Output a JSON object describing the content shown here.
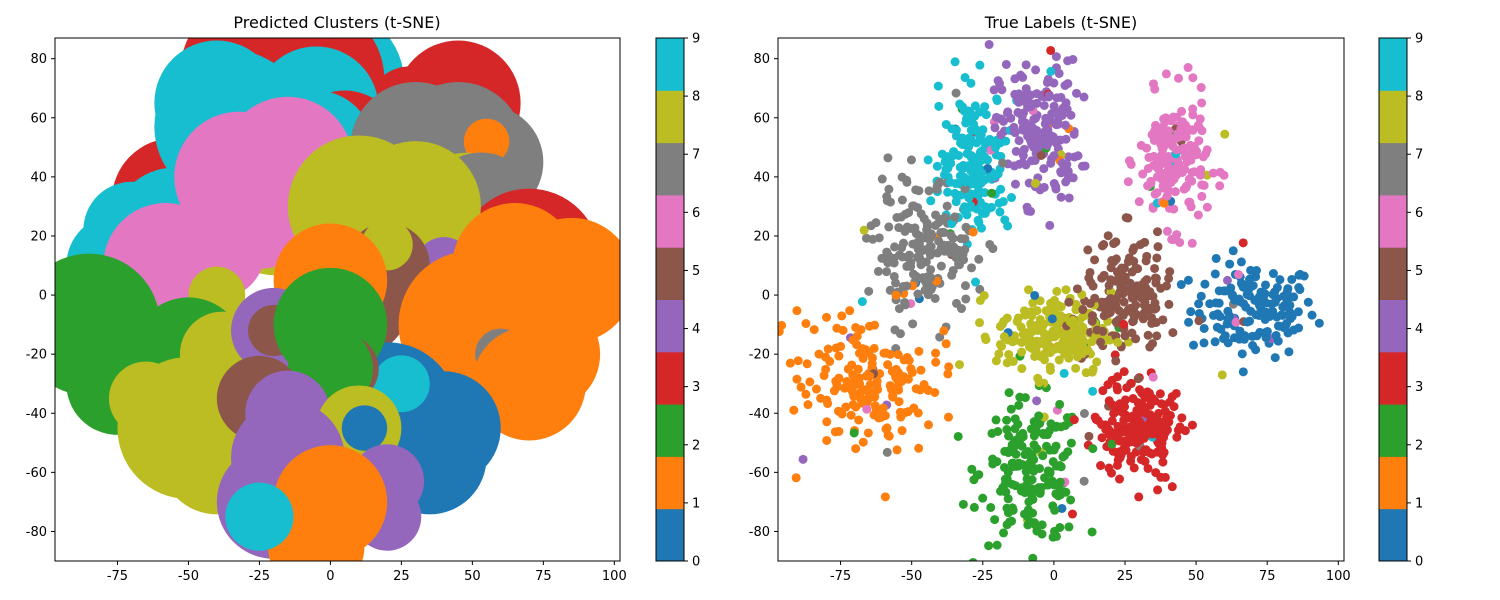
{
  "palette": [
    "#1f77b4",
    "#ff7f0e",
    "#2ca02c",
    "#d62728",
    "#9467bd",
    "#8c564b",
    "#e377c2",
    "#7f7f7f",
    "#bcbd22",
    "#17becf"
  ],
  "chart_data": [
    {
      "type": "scatter",
      "title": "Predicted Clusters (t-SNE)",
      "xlabel": "",
      "ylabel": "",
      "xlim": [
        -97,
        102
      ],
      "ylim": [
        -90,
        87
      ],
      "xticks": [
        -75,
        -50,
        -25,
        0,
        25,
        50,
        75,
        100
      ],
      "yticks": [
        -80,
        -60,
        -40,
        -20,
        0,
        20,
        40,
        60,
        80
      ],
      "grid": false,
      "colorbar": {
        "min": 0,
        "max": 9,
        "ticks": [
          0,
          1,
          2,
          3,
          4,
          5,
          6,
          7,
          8,
          9
        ],
        "colormap": "tab10"
      },
      "points": [
        {
          "x": 0,
          "y": 72,
          "r": 26,
          "c": 9
        },
        {
          "x": -8,
          "y": 73,
          "r": 27,
          "c": 3
        },
        {
          "x": -25,
          "y": 75,
          "r": 28,
          "c": 3
        },
        {
          "x": -40,
          "y": 65,
          "r": 22,
          "c": 9
        },
        {
          "x": 45,
          "y": 65,
          "r": 22,
          "c": 3
        },
        {
          "x": 28,
          "y": 63,
          "r": 15,
          "c": 3
        },
        {
          "x": -55,
          "y": 32,
          "r": 22,
          "c": 3
        },
        {
          "x": -35,
          "y": 57,
          "r": 27,
          "c": 9
        },
        {
          "x": -25,
          "y": 63,
          "r": 12,
          "c": 9
        },
        {
          "x": -5,
          "y": 63,
          "r": 22,
          "c": 9
        },
        {
          "x": 5,
          "y": 50,
          "r": 20,
          "c": 3
        },
        {
          "x": -5,
          "y": 50,
          "r": 20,
          "c": 9
        },
        {
          "x": 45,
          "y": 50,
          "r": 23,
          "c": 7
        },
        {
          "x": 30,
          "y": 50,
          "r": 23,
          "c": 7
        },
        {
          "x": 55,
          "y": 45,
          "r": 20,
          "c": 7
        },
        {
          "x": 55,
          "y": 52,
          "r": 8,
          "c": 1
        },
        {
          "x": 48,
          "y": 28,
          "r": 21,
          "c": 8
        },
        {
          "x": 53,
          "y": 30,
          "r": 19,
          "c": 7
        },
        {
          "x": 70,
          "y": 12,
          "r": 25,
          "c": 3
        },
        {
          "x": -70,
          "y": 22,
          "r": 17,
          "c": 9
        },
        {
          "x": -55,
          "y": 22,
          "r": 22,
          "c": 9
        },
        {
          "x": -75,
          "y": 10,
          "r": 18,
          "c": 9
        },
        {
          "x": -32,
          "y": 40,
          "r": 23,
          "c": 6
        },
        {
          "x": -15,
          "y": 45,
          "r": 23,
          "c": 6
        },
        {
          "x": -5,
          "y": 40,
          "r": 17,
          "c": 6
        },
        {
          "x": -20,
          "y": 25,
          "r": 19,
          "c": 8
        },
        {
          "x": -25,
          "y": 30,
          "r": 22,
          "c": 6
        },
        {
          "x": -8,
          "y": 27,
          "r": 17,
          "c": 6
        },
        {
          "x": 10,
          "y": 30,
          "r": 25,
          "c": 8
        },
        {
          "x": 30,
          "y": 30,
          "r": 23,
          "c": 8
        },
        {
          "x": -58,
          "y": 10,
          "r": 22,
          "c": 6
        },
        {
          "x": -50,
          "y": 10,
          "r": 19,
          "c": 6
        },
        {
          "x": -45,
          "y": 5,
          "r": 14,
          "c": 6
        },
        {
          "x": -40,
          "y": 15,
          "r": 17,
          "c": 6
        },
        {
          "x": -40,
          "y": 0,
          "r": 10,
          "c": 8
        },
        {
          "x": 40,
          "y": 10,
          "r": 10,
          "c": 4
        },
        {
          "x": 20,
          "y": 10,
          "r": 15,
          "c": 5
        },
        {
          "x": 20,
          "y": 17,
          "r": 9,
          "c": 8
        },
        {
          "x": 12,
          "y": -5,
          "r": 15,
          "c": 5
        },
        {
          "x": 0,
          "y": 5,
          "r": 20,
          "c": 1
        },
        {
          "x": 70,
          "y": 0,
          "r": 25,
          "c": 1
        },
        {
          "x": 65,
          "y": 10,
          "r": 22,
          "c": 1
        },
        {
          "x": 50,
          "y": -10,
          "r": 26,
          "c": 1
        },
        {
          "x": 85,
          "y": 5,
          "r": 22,
          "c": 1
        },
        {
          "x": 75,
          "y": -20,
          "r": 20,
          "c": 1
        },
        {
          "x": 60,
          "y": -20,
          "r": 9,
          "c": 7
        },
        {
          "x": 70,
          "y": -30,
          "r": 20,
          "c": 1
        },
        {
          "x": 20,
          "y": -40,
          "r": 25,
          "c": 0
        },
        {
          "x": 40,
          "y": -45,
          "r": 20,
          "c": 0
        },
        {
          "x": 35,
          "y": -55,
          "r": 20,
          "c": 0
        },
        {
          "x": 25,
          "y": -30,
          "r": 10,
          "c": 9
        },
        {
          "x": -85,
          "y": -10,
          "r": 25,
          "c": 2
        },
        {
          "x": -75,
          "y": -30,
          "r": 18,
          "c": 2
        },
        {
          "x": -50,
          "y": -20,
          "r": 20,
          "c": 2
        },
        {
          "x": -65,
          "y": -25,
          "r": 20,
          "c": 2
        },
        {
          "x": -38,
          "y": -20,
          "r": 15,
          "c": 8
        },
        {
          "x": -50,
          "y": -45,
          "r": 25,
          "c": 8
        },
        {
          "x": -40,
          "y": -55,
          "r": 20,
          "c": 8
        },
        {
          "x": -65,
          "y": -35,
          "r": 13,
          "c": 8
        },
        {
          "x": -20,
          "y": -12,
          "r": 15,
          "c": 4
        },
        {
          "x": -20,
          "y": -12,
          "r": 9,
          "c": 5
        },
        {
          "x": 0,
          "y": -10,
          "r": 20,
          "c": 2
        },
        {
          "x": 5,
          "y": -25,
          "r": 12,
          "c": 5
        },
        {
          "x": 0,
          "y": -25,
          "r": 15,
          "c": 2
        },
        {
          "x": -25,
          "y": -35,
          "r": 15,
          "c": 5
        },
        {
          "x": -15,
          "y": -40,
          "r": 15,
          "c": 4
        },
        {
          "x": 10,
          "y": -45,
          "r": 15,
          "c": 8
        },
        {
          "x": 12,
          "y": -45,
          "r": 8,
          "c": 0
        },
        {
          "x": -15,
          "y": -55,
          "r": 20,
          "c": 4
        },
        {
          "x": -20,
          "y": -70,
          "r": 20,
          "c": 4
        },
        {
          "x": 20,
          "y": -63,
          "r": 13,
          "c": 4
        },
        {
          "x": 20,
          "y": -75,
          "r": 12,
          "c": 4
        },
        {
          "x": -20,
          "y": -55,
          "r": 10,
          "c": 4
        },
        {
          "x": -15,
          "y": -38,
          "r": 8,
          "c": 4
        },
        {
          "x": 0,
          "y": -70,
          "r": 20,
          "c": 1
        },
        {
          "x": -5,
          "y": -85,
          "r": 17,
          "c": 1
        },
        {
          "x": -25,
          "y": -75,
          "r": 12,
          "c": 9
        }
      ]
    },
    {
      "type": "scatter",
      "title": "True Labels (t-SNE)",
      "xlabel": "",
      "ylabel": "",
      "xlim": [
        -97,
        102
      ],
      "ylim": [
        -90,
        87
      ],
      "xticks": [
        -75,
        -50,
        -25,
        0,
        25,
        50,
        75,
        100
      ],
      "yticks": [
        -80,
        -60,
        -40,
        -20,
        0,
        20,
        40,
        60,
        80
      ],
      "grid": false,
      "colorbar": {
        "min": 0,
        "max": 9,
        "ticks": [
          0,
          1,
          2,
          3,
          4,
          5,
          6,
          7,
          8,
          9
        ],
        "colormap": "tab10"
      },
      "clusters": [
        {
          "label": 0,
          "cx": 70,
          "cy": -5,
          "sx": 11,
          "sy": 8,
          "n": 150
        },
        {
          "label": 1,
          "cx": -65,
          "cy": -30,
          "sx": 12,
          "sy": 11,
          "n": 180
        },
        {
          "label": 2,
          "cx": -8,
          "cy": -60,
          "sx": 9,
          "sy": 12,
          "n": 190
        },
        {
          "label": 3,
          "cx": 30,
          "cy": -45,
          "sx": 8,
          "sy": 8,
          "n": 200
        },
        {
          "label": 4,
          "cx": -5,
          "cy": 55,
          "sx": 7,
          "sy": 12,
          "n": 180
        },
        {
          "label": 5,
          "cx": 25,
          "cy": 0,
          "sx": 7,
          "sy": 10,
          "n": 180
        },
        {
          "label": 6,
          "cx": 42,
          "cy": 45,
          "sx": 6,
          "sy": 11,
          "n": 180
        },
        {
          "label": 7,
          "cx": -45,
          "cy": 15,
          "sx": 9,
          "sy": 11,
          "n": 180
        },
        {
          "label": 8,
          "cx": 0,
          "cy": -13,
          "sx": 10,
          "sy": 7,
          "n": 200
        },
        {
          "label": 9,
          "cx": -28,
          "cy": 45,
          "sx": 6,
          "sy": 12,
          "n": 180
        }
      ]
    }
  ]
}
